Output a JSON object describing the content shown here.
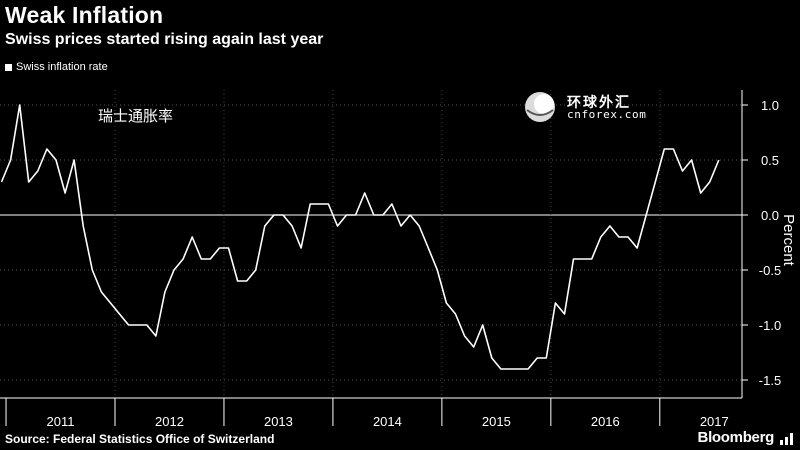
{
  "chart_data": {
    "type": "line",
    "title": "Weak Inflation",
    "subtitle": "Swiss prices started rising again last year",
    "xlabel": "",
    "ylabel": "Percent",
    "ylim": [
      -1.6,
      1.1
    ],
    "yticks": [
      1.0,
      0.5,
      0.0,
      -0.5,
      -1.0,
      -1.5
    ],
    "ytick_labels": [
      "1.0",
      "0.5",
      "0.0",
      "-0.5",
      "-1.0",
      "-1.5"
    ],
    "year_labels": [
      "2011",
      "2012",
      "2013",
      "2014",
      "2015",
      "2016",
      "2017"
    ],
    "x_start": "2010-12",
    "grid": "horizontal dotted",
    "legend_position": "top-left",
    "series": [
      {
        "name": "Swiss inflation rate",
        "color": "#ffffff",
        "values": [
          0.3,
          0.5,
          1.0,
          0.3,
          0.4,
          0.6,
          0.5,
          0.2,
          0.5,
          -0.1,
          -0.5,
          -0.7,
          -0.8,
          -0.9,
          -1.0,
          -1.0,
          -1.0,
          -1.1,
          -0.7,
          -0.5,
          -0.4,
          -0.2,
          -0.4,
          -0.4,
          -0.3,
          -0.3,
          -0.6,
          -0.6,
          -0.5,
          -0.1,
          0.0,
          0.0,
          -0.1,
          -0.3,
          0.1,
          0.1,
          0.1,
          -0.1,
          0.0,
          0.0,
          0.2,
          0.0,
          0.0,
          0.1,
          -0.1,
          0.0,
          -0.1,
          -0.3,
          -0.5,
          -0.8,
          -0.9,
          -1.1,
          -1.2,
          -1.0,
          -1.3,
          -1.4,
          -1.4,
          -1.4,
          -1.4,
          -1.3,
          -1.3,
          -0.8,
          -0.9,
          -0.4,
          -0.4,
          -0.4,
          -0.2,
          -0.1,
          -0.2,
          -0.2,
          -0.3,
          0.0,
          0.3,
          0.6,
          0.6,
          0.4,
          0.5,
          0.2,
          0.3,
          0.5
        ]
      }
    ],
    "annotation": "瑞士通胀率"
  },
  "source_label": "Source: Federal Statistics Office of Switzerland",
  "brand": "Bloomberg",
  "watermark": {
    "cn": "环球外汇",
    "en": "cnforex.com"
  }
}
